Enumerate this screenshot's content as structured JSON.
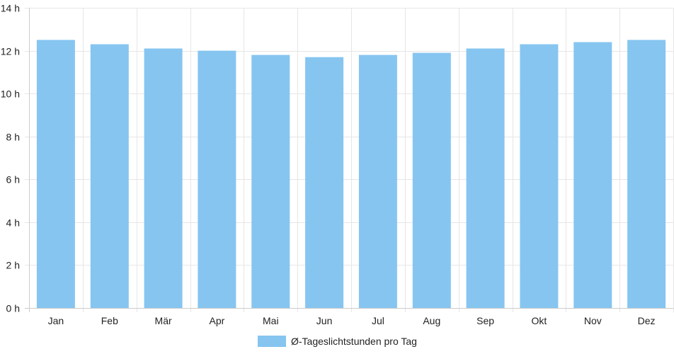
{
  "chart_data": {
    "type": "bar",
    "categories": [
      "Jan",
      "Feb",
      "Mär",
      "Apr",
      "Mai",
      "Jun",
      "Jul",
      "Aug",
      "Sep",
      "Okt",
      "Nov",
      "Dez"
    ],
    "series": [
      {
        "name": "Ø-Tageslichtstunden pro Tag",
        "values": [
          12.5,
          12.3,
          12.1,
          12.0,
          11.8,
          11.7,
          11.8,
          11.9,
          12.1,
          12.3,
          12.4,
          12.5
        ],
        "color": "#86c5f0"
      }
    ],
    "yticks": [
      "0 h",
      "2 h",
      "4 h",
      "6 h",
      "8 h",
      "10 h",
      "12 h",
      "14 h"
    ],
    "ylim": [
      0,
      14
    ],
    "grid": true,
    "legend_position": "bottom",
    "colors": {
      "grid": "#e6e6e6",
      "axis": "#cccccc",
      "text": "#222222"
    }
  }
}
